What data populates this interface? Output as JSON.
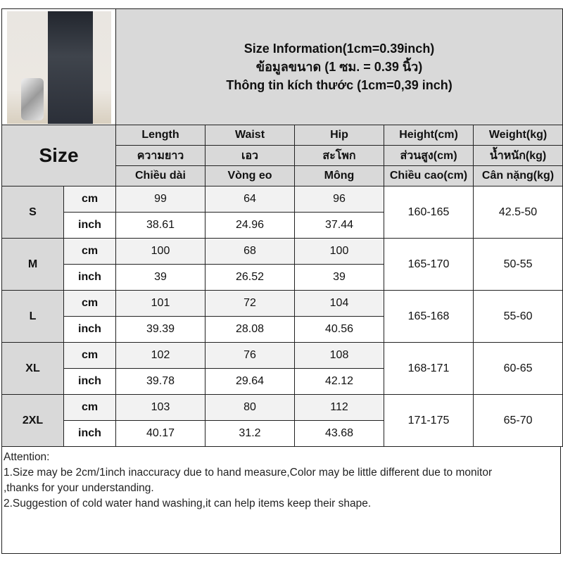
{
  "header": {
    "lines": [
      "Size Information(1cm=0.39inch)",
      "ข้อมูลขนาด (1 ซม. = 0.39 นิ้ว)",
      "Thông tin kích thước (1cm=0,39 inch)"
    ]
  },
  "table": {
    "size_label": "Size",
    "columns": [
      {
        "en": "Length",
        "th": "ความยาว",
        "vi": "Chiều dài"
      },
      {
        "en": "Waist",
        "th": "เอว",
        "vi": "Vòng eo"
      },
      {
        "en": "Hip",
        "th": "สะโพก",
        "vi": "Mông"
      },
      {
        "en": "Height(cm)",
        "th": "ส่วนสูง(cm)",
        "vi": "Chiều cao(cm)"
      },
      {
        "en": "Weight(kg)",
        "th": "น้ำหนัก(kg)",
        "vi": "Cân nặng(kg)"
      }
    ],
    "units": {
      "cm": "cm",
      "inch": "inch"
    },
    "rows": [
      {
        "size": "S",
        "cm": [
          "99",
          "64",
          "96"
        ],
        "inch": [
          "38.61",
          "24.96",
          "37.44"
        ],
        "height": "160-165",
        "weight": "42.5-50"
      },
      {
        "size": "M",
        "cm": [
          "100",
          "68",
          "100"
        ],
        "inch": [
          "39",
          "26.52",
          "39"
        ],
        "height": "165-170",
        "weight": "50-55"
      },
      {
        "size": "L",
        "cm": [
          "101",
          "72",
          "104"
        ],
        "inch": [
          "39.39",
          "28.08",
          "40.56"
        ],
        "height": "165-168",
        "weight": "55-60"
      },
      {
        "size": "XL",
        "cm": [
          "102",
          "76",
          "108"
        ],
        "inch": [
          "39.78",
          "29.64",
          "42.12"
        ],
        "height": "168-171",
        "weight": "60-65"
      },
      {
        "size": "2XL",
        "cm": [
          "103",
          "80",
          "112"
        ],
        "inch": [
          "40.17",
          "31.2",
          "43.68"
        ],
        "height": "171-175",
        "weight": "65-70"
      }
    ]
  },
  "attention": {
    "lines": [
      "Attention:",
      "1.Size may be 2cm/1inch inaccuracy due to hand measure,Color may be little different due to monitor",
      ",thanks for your understanding.",
      "2.Suggestion of cold water hand washing,it can help items keep their shape."
    ]
  }
}
